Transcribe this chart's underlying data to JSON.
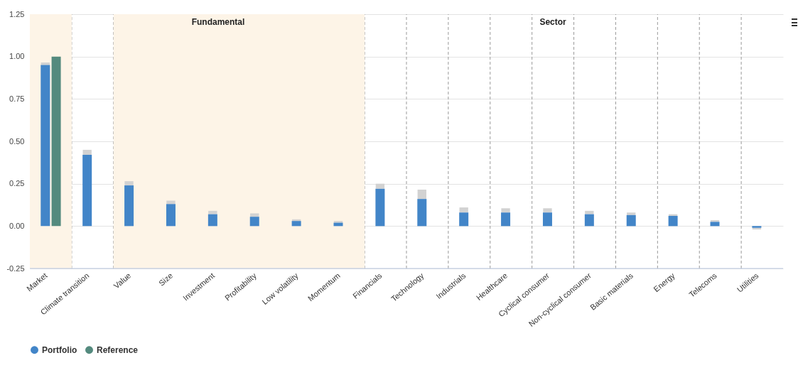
{
  "chart_data": {
    "type": "bar",
    "categories": [
      "Market",
      "Climate transition",
      "Value",
      "Size",
      "Investment",
      "Profitability",
      "Low volatility",
      "Momentum",
      "Financials",
      "Technology",
      "Industrials",
      "Healthcare",
      "Cyclical consumer",
      "Non-cyclical consumer",
      "Basic materials",
      "Energy",
      "Telecoms",
      "Utilities"
    ],
    "series": [
      {
        "name": "Portfolio",
        "color": "#4285c8",
        "values": [
          0.95,
          0.42,
          0.24,
          0.13,
          0.07,
          0.055,
          0.03,
          0.02,
          0.22,
          0.16,
          0.08,
          0.08,
          0.08,
          0.07,
          0.065,
          0.06,
          0.025,
          -0.01
        ],
        "errors": [
          [
            0.95,
            0.965
          ],
          [
            0.42,
            0.45
          ],
          [
            0.24,
            0.265
          ],
          [
            0.13,
            0.15
          ],
          [
            0.07,
            0.09
          ],
          [
            0.055,
            0.075
          ],
          [
            0.03,
            0.04
          ],
          [
            0.02,
            0.03
          ],
          [
            0.22,
            0.25
          ],
          [
            0.16,
            0.215
          ],
          [
            0.08,
            0.11
          ],
          [
            0.08,
            0.105
          ],
          [
            0.08,
            0.105
          ],
          [
            0.07,
            0.09
          ],
          [
            0.065,
            0.08
          ],
          [
            0.06,
            0.07
          ],
          [
            0.025,
            0.035
          ],
          [
            -0.02,
            -0.01
          ]
        ]
      },
      {
        "name": "Reference",
        "color": "#548a7e",
        "values": [
          1.0,
          null,
          null,
          null,
          null,
          null,
          null,
          null,
          null,
          null,
          null,
          null,
          null,
          null,
          null,
          null,
          null,
          null
        ]
      }
    ],
    "ylim": [
      -0.25,
      1.25
    ],
    "yticks": [
      {
        "value": -0.25,
        "label": "-0.25"
      },
      {
        "value": 0,
        "label": "0.00"
      },
      {
        "value": 0.25,
        "label": "0.25"
      },
      {
        "value": 0.5,
        "label": "0.50"
      },
      {
        "value": 0.75,
        "label": "0.75"
      },
      {
        "value": 1,
        "label": "1.00"
      },
      {
        "value": 1.25,
        "label": "1.25"
      }
    ],
    "bands": [
      {
        "axis": "x",
        "from": "Market",
        "to": "Market",
        "color": "#fdf4e7"
      },
      {
        "axis": "x",
        "from": "Value",
        "to": "Momentum",
        "color": "#fdf4e7",
        "label": "Fundamental"
      }
    ],
    "annotations": [
      "Sector"
    ],
    "grid": true,
    "legend": "bottom"
  }
}
